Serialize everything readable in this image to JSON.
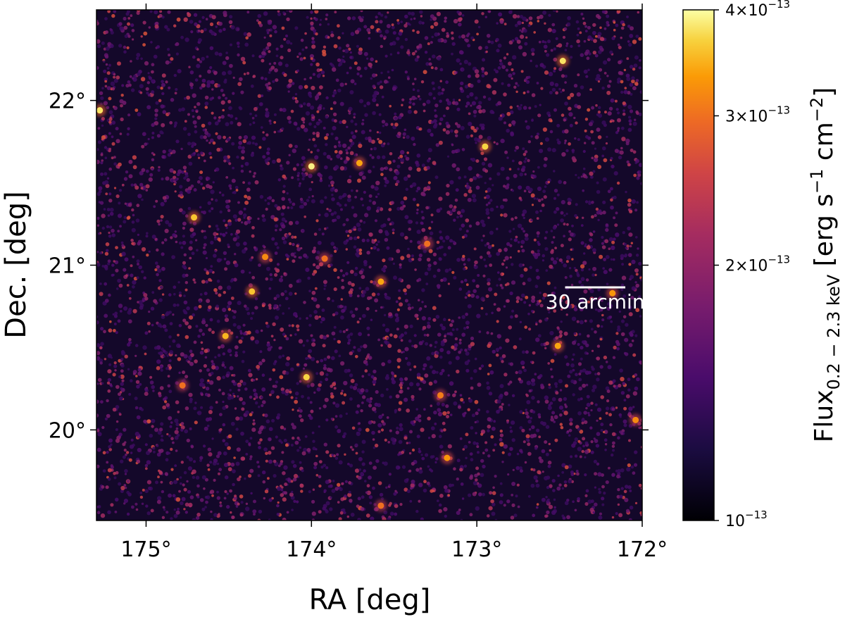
{
  "chart_data": {
    "type": "heatmap",
    "title": "",
    "colormap": "inferno",
    "xlabel": "RA [deg]",
    "ylabel": "Dec. [deg]",
    "xlim": [
      175.3,
      172.0
    ],
    "ylim": [
      19.45,
      22.55
    ],
    "x_ticks": [
      {
        "value": 175,
        "label": "175°"
      },
      {
        "value": 174,
        "label": "174°"
      },
      {
        "value": 173,
        "label": "173°"
      },
      {
        "value": 172,
        "label": "172°"
      }
    ],
    "y_ticks": [
      {
        "value": 20,
        "label": "20°"
      },
      {
        "value": 21,
        "label": "21°"
      },
      {
        "value": 22,
        "label": "22°"
      }
    ],
    "scalebar": {
      "label": "30 arcmin",
      "length_deg": 0.5
    },
    "colorbar": {
      "scale": "log",
      "range": [
        1e-13,
        4e-13
      ],
      "label": {
        "main": "Flux",
        "sub": "0.2 − 2.3 keV",
        "units_pre": " [erg s",
        "exp1": "−1",
        "units_mid": " cm",
        "exp2": "−2",
        "units_post": "]"
      },
      "ticks": [
        {
          "value": 1e-13,
          "mantissa": "",
          "exp": "−13"
        },
        {
          "value": 2e-13,
          "mantissa": "2",
          "exp": "−13"
        },
        {
          "value": 3e-13,
          "mantissa": "3",
          "exp": "−13"
        },
        {
          "value": 4e-13,
          "mantissa": "4",
          "exp": "−13"
        }
      ]
    },
    "bright_sources": [
      {
        "ra": 175.28,
        "dec": 21.94,
        "flux": 3.8e-13
      },
      {
        "ra": 174.0,
        "dec": 21.6,
        "flux": 3.9e-13
      },
      {
        "ra": 174.71,
        "dec": 21.29,
        "flux": 3.6e-13
      },
      {
        "ra": 174.28,
        "dec": 21.05,
        "flux": 3.2e-13
      },
      {
        "ra": 173.92,
        "dec": 21.04,
        "flux": 3e-13
      },
      {
        "ra": 173.58,
        "dec": 20.9,
        "flux": 3.4e-13
      },
      {
        "ra": 174.36,
        "dec": 20.84,
        "flux": 3.6e-13
      },
      {
        "ra": 174.52,
        "dec": 20.57,
        "flux": 3.5e-13
      },
      {
        "ra": 174.03,
        "dec": 20.32,
        "flux": 3.7e-13
      },
      {
        "ra": 173.71,
        "dec": 21.62,
        "flux": 3.4e-13
      },
      {
        "ra": 172.95,
        "dec": 21.72,
        "flux": 3.7e-13
      },
      {
        "ra": 172.48,
        "dec": 22.24,
        "flux": 3.8e-13
      },
      {
        "ra": 172.51,
        "dec": 20.51,
        "flux": 3.4e-13
      },
      {
        "ra": 173.18,
        "dec": 19.83,
        "flux": 3.3e-13
      },
      {
        "ra": 173.22,
        "dec": 20.21,
        "flux": 3.1e-13
      },
      {
        "ra": 172.18,
        "dec": 20.83,
        "flux": 3.3e-13
      },
      {
        "ra": 173.3,
        "dec": 21.13,
        "flux": 3e-13
      },
      {
        "ra": 172.04,
        "dec": 20.06,
        "flux": 3.2e-13
      },
      {
        "ra": 174.78,
        "dec": 20.27,
        "flux": 3e-13
      },
      {
        "ra": 173.58,
        "dec": 19.54,
        "flux": 3e-13
      }
    ]
  }
}
